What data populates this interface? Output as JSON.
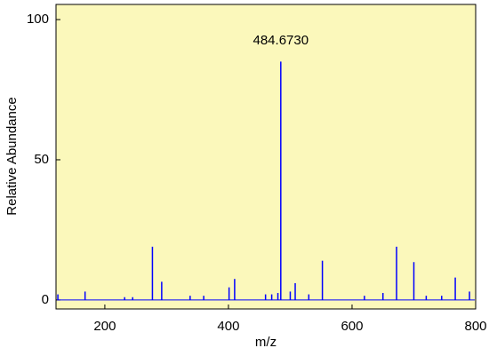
{
  "chart_data": {
    "type": "stem",
    "xlabel": "m/z",
    "ylabel": "Relative Abundance",
    "annotation": "484.6730",
    "annotation_x": 484.673,
    "x": [
      124,
      168,
      232,
      245,
      277,
      292,
      338,
      360,
      401,
      410,
      460,
      470,
      480,
      484.673,
      500,
      508,
      530,
      552,
      620,
      650,
      672,
      700,
      720,
      745,
      767,
      790
    ],
    "values": [
      2,
      3,
      1,
      1,
      19,
      6.5,
      1.5,
      1.5,
      4.5,
      7.5,
      2,
      2,
      2.5,
      85,
      3,
      6,
      2,
      14,
      1.5,
      2.5,
      19,
      13.5,
      1.5,
      1.5,
      8,
      3
    ],
    "color": "#0000ff",
    "background": "#fbf8bb",
    "xlim": [
      121,
      800
    ],
    "ylim": [
      -3.2,
      105.4
    ],
    "xticks": [
      200,
      400,
      600,
      800
    ],
    "yticks": [
      0,
      50,
      100
    ]
  }
}
